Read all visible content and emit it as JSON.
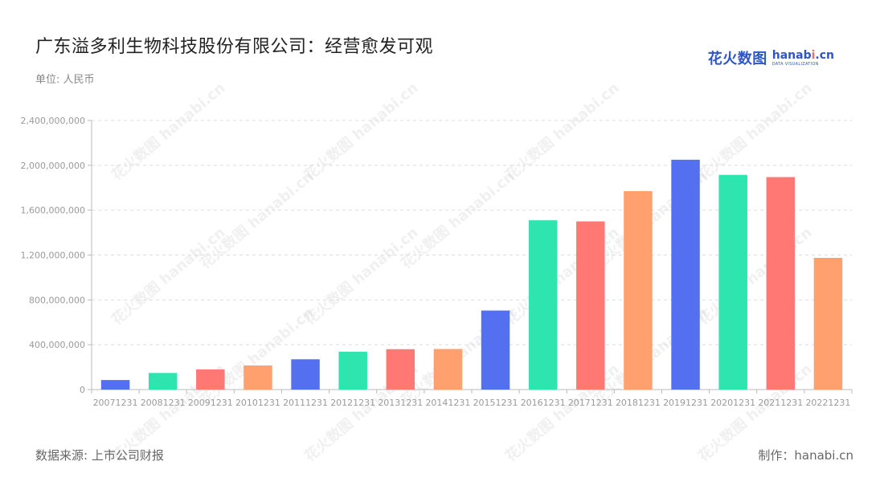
{
  "title": "广东溢多利生物科技股份有限公司：经营愈发可观",
  "unit_label": "单位: 人民币",
  "logo": {
    "cn": "花火数图",
    "en_prefix": "hanab",
    "en_dot": "i",
    "en_suffix": ".cn",
    "sub": "DATA VISUALIZATION"
  },
  "watermark_text": "花火数图 hanabi.cn",
  "source": "数据来源: 上市公司财报",
  "credit": "制作：hanabi.cn",
  "colors": {
    "palette": [
      "#5470f0",
      "#2ee5b0",
      "#ff7874",
      "#ffa06e"
    ],
    "grid": "#dddddd",
    "axis": "#bbbbbb",
    "tick_text": "#9a9a9a"
  },
  "chart_data": {
    "type": "bar",
    "title": "广东溢多利生物科技股份有限公司：经营愈发可观",
    "ylabel": "单位: 人民币",
    "ylim": [
      0,
      2400000000
    ],
    "yticks": [
      0,
      400000000,
      800000000,
      1200000000,
      1600000000,
      2000000000,
      2400000000
    ],
    "ytick_labels": [
      "0",
      "400,000,000",
      "800,000,000",
      "1,200,000,000",
      "1,600,000,000",
      "2,000,000,000",
      "2,400,000,000"
    ],
    "grid": true,
    "categories": [
      "20071231",
      "20081231",
      "20091231",
      "20101231",
      "20111231",
      "20121231",
      "20131231",
      "20141231",
      "20151231",
      "20161231",
      "20171231",
      "20181231",
      "20191231",
      "20201231",
      "20211231",
      "20221231"
    ],
    "values": [
      85000000,
      148000000,
      180000000,
      215000000,
      270000000,
      338000000,
      360000000,
      362000000,
      705000000,
      1510000000,
      1500000000,
      1770000000,
      2050000000,
      1915000000,
      1895000000,
      1175000000
    ]
  }
}
